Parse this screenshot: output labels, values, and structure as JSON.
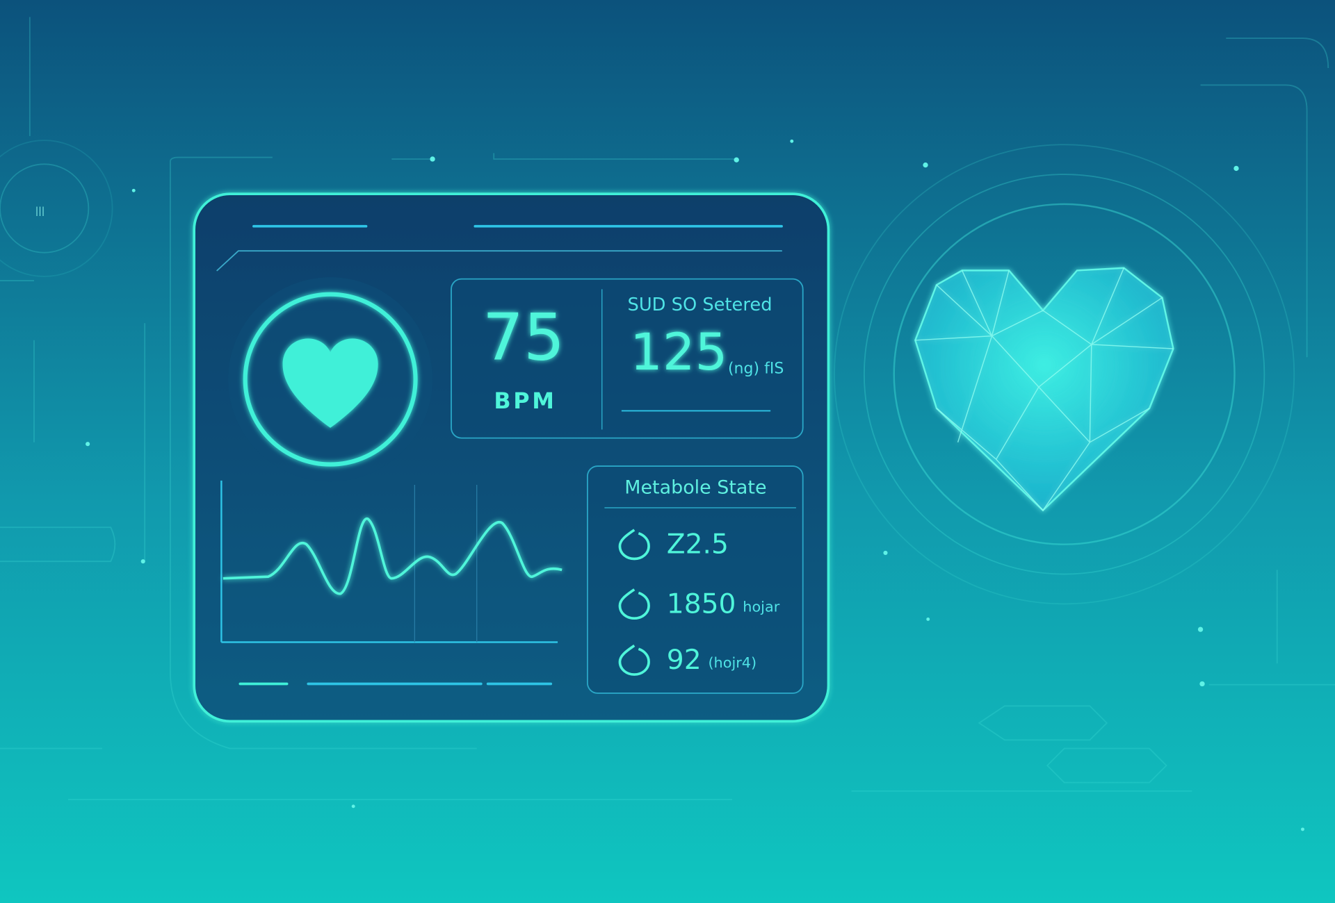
{
  "side_indicator": "|||",
  "heart_rate": {
    "value": "75",
    "unit": "BPM"
  },
  "secondary": {
    "label": "SUD SO Setered",
    "value": "125",
    "unit": "(ng) fIS"
  },
  "metabolic": {
    "title": "Metabole State",
    "items": [
      {
        "value": "Z2.5"
      },
      {
        "value": "1850",
        "unit": "hojar"
      },
      {
        "value": "92",
        "unit": "(hojr4)"
      }
    ]
  }
}
